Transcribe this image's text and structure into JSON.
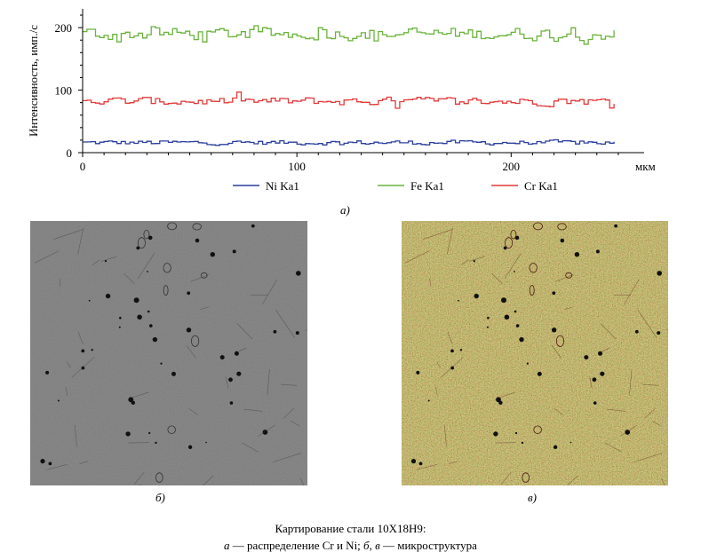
{
  "chart_data": {
    "type": "line",
    "title": "",
    "ylabel": "Интенсивность, имп./с",
    "xlabel": "мкм",
    "xlim": [
      0,
      260
    ],
    "ylim": [
      0,
      230
    ],
    "x_ticks": [
      0,
      100,
      200
    ],
    "y_ticks": [
      0,
      100,
      200
    ],
    "grid": false,
    "legend_position": "bottom",
    "series": [
      {
        "name": "Ni Ka1",
        "color": "#2b3f9e",
        "mean": 16,
        "spread": 5
      },
      {
        "name": "Fe Ka1",
        "color": "#69b33a",
        "mean": 190,
        "spread": 14
      },
      {
        "name": "Cr Ka1",
        "color": "#e33a3a",
        "mean": 82,
        "spread": 9
      }
    ]
  },
  "labels": {
    "panel_a": "а)",
    "panel_b": "б)",
    "panel_c": "в)",
    "caption_line1": "Картирование стали 10Х18Н9:",
    "caption_line2_a": "а",
    "caption_line2_mid": " — распределение Cr и Ni; ",
    "caption_line2_b": "б",
    "caption_line2_sep": ", ",
    "caption_line2_c": "в",
    "caption_line2_end": " — микроструктура"
  },
  "colors": {
    "axis": "#000000",
    "micro_gray": "#8e8e8e",
    "micro_color_base": "#9a9a3c"
  }
}
